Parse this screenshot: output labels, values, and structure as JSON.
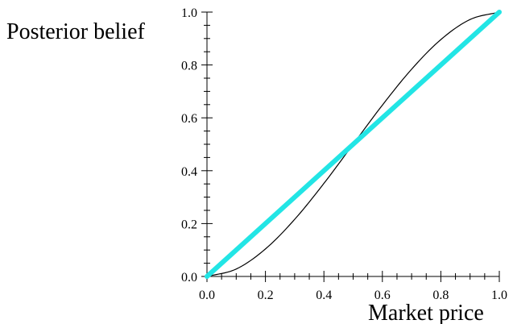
{
  "chart_data": {
    "type": "line",
    "title": "",
    "xlabel": "Market price",
    "ylabel": "Posterior belief",
    "xlim": [
      0.0,
      1.0
    ],
    "ylim": [
      0.0,
      1.0
    ],
    "x_ticks": [
      "0.0",
      "0.2",
      "0.4",
      "0.6",
      "0.8",
      "1.0"
    ],
    "y_ticks": [
      "0.0",
      "0.2",
      "0.4",
      "0.6",
      "0.8",
      "1.0"
    ],
    "grid": false,
    "legend": "none",
    "series": [
      {
        "color": "#000000",
        "x": [
          0.0,
          0.1,
          0.2,
          0.3,
          0.4,
          0.5,
          0.6,
          0.7,
          0.8,
          0.9,
          1.0
        ],
        "y": [
          0.0,
          0.028,
          0.104,
          0.216,
          0.352,
          0.5,
          0.648,
          0.784,
          0.896,
          0.972,
          1.0
        ]
      },
      {
        "color": "#22e5e5",
        "x": [
          0.0,
          1.0
        ],
        "y": [
          0.0,
          1.0
        ]
      }
    ]
  }
}
